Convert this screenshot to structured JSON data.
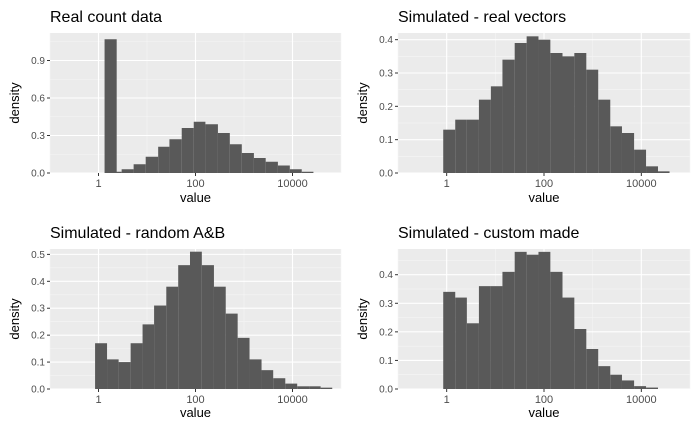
{
  "colors": {
    "panel_bg": "#ebebeb",
    "grid_major": "#ffffff",
    "bar_fill": "#595959",
    "tick_text": "#4d4d4d",
    "title_text": "#000000"
  },
  "chart_data": [
    {
      "type": "bar",
      "title": "Real count data",
      "xlabel": "value",
      "ylabel": "density",
      "x_scale": "log10",
      "xlim": [
        0.1,
        100000
      ],
      "ylim": [
        0,
        1.12
      ],
      "x_ticks": [
        1,
        100,
        10000
      ],
      "x_tick_labels": [
        "1",
        "100",
        "10000"
      ],
      "y_ticks": [
        0,
        0.3,
        0.6,
        0.9
      ],
      "y_tick_labels": [
        "0.0",
        "0.3",
        "0.6",
        "0.9"
      ],
      "bin_start": 1,
      "bin_end": 100000,
      "bins": 20,
      "values": [
        0,
        1.07,
        0,
        0,
        0,
        0,
        0,
        0,
        0,
        0,
        0,
        0,
        0,
        0,
        0,
        0,
        0,
        0,
        0,
        0
      ],
      "extra_bars": [
        {
          "x0": 1.7,
          "x1": 3,
          "value": 0.01
        },
        {
          "x0": 3,
          "x1": 5.3,
          "value": 0.03
        },
        {
          "x0": 5.3,
          "x1": 9.4,
          "value": 0.07
        },
        {
          "x0": 9.4,
          "x1": 17,
          "value": 0.13
        },
        {
          "x0": 17,
          "x1": 29,
          "value": 0.21
        },
        {
          "x0": 29,
          "x1": 52,
          "value": 0.27
        },
        {
          "x0": 52,
          "x1": 92,
          "value": 0.36
        },
        {
          "x0": 92,
          "x1": 160,
          "value": 0.41
        },
        {
          "x0": 160,
          "x1": 290,
          "value": 0.39
        },
        {
          "x0": 290,
          "x1": 510,
          "value": 0.32
        },
        {
          "x0": 510,
          "x1": 900,
          "value": 0.23
        },
        {
          "x0": 900,
          "x1": 1600,
          "value": 0.16
        },
        {
          "x0": 1600,
          "x1": 2800,
          "value": 0.12
        },
        {
          "x0": 2800,
          "x1": 5000,
          "value": 0.09
        },
        {
          "x0": 5000,
          "x1": 8800,
          "value": 0.06
        },
        {
          "x0": 8800,
          "x1": 15500,
          "value": 0.03
        },
        {
          "x0": 15500,
          "x1": 27000,
          "value": 0.01
        }
      ]
    },
    {
      "type": "bar",
      "title": "Simulated - real vectors",
      "xlabel": "value",
      "ylabel": "density",
      "x_scale": "log10",
      "xlim": [
        0.1,
        100000
      ],
      "ylim": [
        0,
        0.42
      ],
      "x_ticks": [
        1,
        100,
        10000
      ],
      "x_tick_labels": [
        "1",
        "100",
        "10000"
      ],
      "y_ticks": [
        0,
        0.1,
        0.2,
        0.3,
        0.4
      ],
      "y_tick_labels": [
        "0.0",
        "0.1",
        "0.2",
        "0.3",
        "0.4"
      ],
      "bars": [
        {
          "x0": 0.85,
          "x1": 1.5,
          "value": 0.13
        },
        {
          "x0": 1.5,
          "x1": 2.6,
          "value": 0.16
        },
        {
          "x0": 2.6,
          "x1": 4.6,
          "value": 0.16
        },
        {
          "x0": 4.6,
          "x1": 8.1,
          "value": 0.22
        },
        {
          "x0": 8.1,
          "x1": 14,
          "value": 0.26
        },
        {
          "x0": 14,
          "x1": 25,
          "value": 0.34
        },
        {
          "x0": 25,
          "x1": 44,
          "value": 0.39
        },
        {
          "x0": 44,
          "x1": 77,
          "value": 0.41
        },
        {
          "x0": 77,
          "x1": 135,
          "value": 0.4
        },
        {
          "x0": 135,
          "x1": 240,
          "value": 0.36
        },
        {
          "x0": 240,
          "x1": 420,
          "value": 0.35
        },
        {
          "x0": 420,
          "x1": 740,
          "value": 0.36
        },
        {
          "x0": 740,
          "x1": 1300,
          "value": 0.31
        },
        {
          "x0": 1300,
          "x1": 2300,
          "value": 0.22
        },
        {
          "x0": 2300,
          "x1": 4000,
          "value": 0.14
        },
        {
          "x0": 4000,
          "x1": 7100,
          "value": 0.12
        },
        {
          "x0": 7100,
          "x1": 12500,
          "value": 0.07
        },
        {
          "x0": 12500,
          "x1": 22000,
          "value": 0.02
        },
        {
          "x0": 22000,
          "x1": 38000,
          "value": 0.005
        }
      ]
    },
    {
      "type": "bar",
      "title": "Simulated - random A&B",
      "xlabel": "value",
      "ylabel": "density",
      "x_scale": "log10",
      "xlim": [
        0.1,
        100000
      ],
      "ylim": [
        0,
        0.52
      ],
      "x_ticks": [
        1,
        100,
        10000
      ],
      "x_tick_labels": [
        "1",
        "100",
        "10000"
      ],
      "y_ticks": [
        0,
        0.1,
        0.2,
        0.3,
        0.4,
        0.5
      ],
      "y_tick_labels": [
        "0.0",
        "0.1",
        "0.2",
        "0.3",
        "0.4",
        "0.5"
      ],
      "bars": [
        {
          "x0": 0.85,
          "x1": 1.5,
          "value": 0.17
        },
        {
          "x0": 1.5,
          "x1": 2.6,
          "value": 0.11
        },
        {
          "x0": 2.6,
          "x1": 4.6,
          "value": 0.1
        },
        {
          "x0": 4.6,
          "x1": 8.1,
          "value": 0.17
        },
        {
          "x0": 8.1,
          "x1": 14,
          "value": 0.24
        },
        {
          "x0": 14,
          "x1": 25,
          "value": 0.31
        },
        {
          "x0": 25,
          "x1": 44,
          "value": 0.38
        },
        {
          "x0": 44,
          "x1": 77,
          "value": 0.46
        },
        {
          "x0": 77,
          "x1": 135,
          "value": 0.51
        },
        {
          "x0": 135,
          "x1": 240,
          "value": 0.46
        },
        {
          "x0": 240,
          "x1": 420,
          "value": 0.38
        },
        {
          "x0": 420,
          "x1": 740,
          "value": 0.28
        },
        {
          "x0": 740,
          "x1": 1300,
          "value": 0.19
        },
        {
          "x0": 1300,
          "x1": 2300,
          "value": 0.11
        },
        {
          "x0": 2300,
          "x1": 4000,
          "value": 0.07
        },
        {
          "x0": 4000,
          "x1": 7100,
          "value": 0.04
        },
        {
          "x0": 7100,
          "x1": 12500,
          "value": 0.02
        },
        {
          "x0": 12500,
          "x1": 22000,
          "value": 0.01
        },
        {
          "x0": 22000,
          "x1": 38000,
          "value": 0.01
        },
        {
          "x0": 38000,
          "x1": 66000,
          "value": 0.005
        }
      ]
    },
    {
      "type": "bar",
      "title": "Simulated - custom made",
      "xlabel": "value",
      "ylabel": "density",
      "x_scale": "log10",
      "xlim": [
        0.1,
        100000
      ],
      "ylim": [
        0,
        0.49
      ],
      "x_ticks": [
        1,
        100,
        10000
      ],
      "x_tick_labels": [
        "1",
        "100",
        "10000"
      ],
      "y_ticks": [
        0,
        0.1,
        0.2,
        0.3,
        0.4
      ],
      "y_tick_labels": [
        "0.0",
        "0.1",
        "0.2",
        "0.3",
        "0.4"
      ],
      "bars": [
        {
          "x0": 0.85,
          "x1": 1.5,
          "value": 0.34
        },
        {
          "x0": 1.5,
          "x1": 2.6,
          "value": 0.32
        },
        {
          "x0": 2.6,
          "x1": 4.6,
          "value": 0.23
        },
        {
          "x0": 4.6,
          "x1": 8.1,
          "value": 0.36
        },
        {
          "x0": 8.1,
          "x1": 14,
          "value": 0.36
        },
        {
          "x0": 14,
          "x1": 25,
          "value": 0.41
        },
        {
          "x0": 25,
          "x1": 44,
          "value": 0.48
        },
        {
          "x0": 44,
          "x1": 77,
          "value": 0.47
        },
        {
          "x0": 77,
          "x1": 135,
          "value": 0.48
        },
        {
          "x0": 135,
          "x1": 240,
          "value": 0.41
        },
        {
          "x0": 240,
          "x1": 420,
          "value": 0.32
        },
        {
          "x0": 420,
          "x1": 740,
          "value": 0.21
        },
        {
          "x0": 740,
          "x1": 1300,
          "value": 0.14
        },
        {
          "x0": 1300,
          "x1": 2300,
          "value": 0.08
        },
        {
          "x0": 2300,
          "x1": 4000,
          "value": 0.05
        },
        {
          "x0": 4000,
          "x1": 7100,
          "value": 0.03
        },
        {
          "x0": 7100,
          "x1": 12500,
          "value": 0.01
        },
        {
          "x0": 12500,
          "x1": 22000,
          "value": 0.005
        }
      ]
    }
  ]
}
